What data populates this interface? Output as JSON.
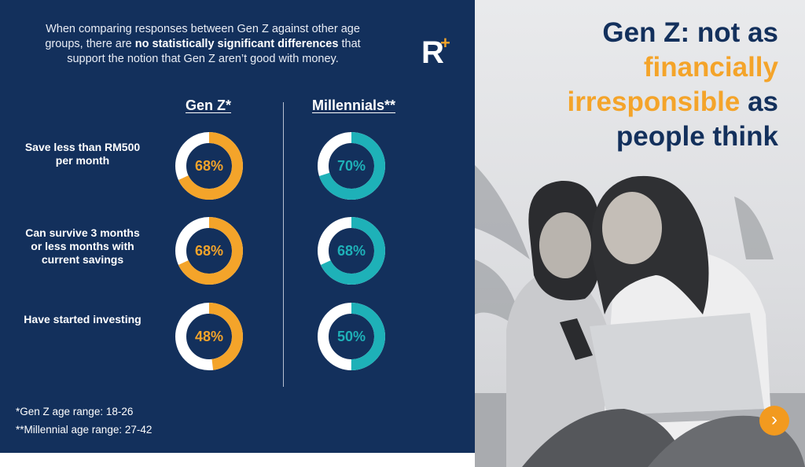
{
  "intro": {
    "part1": "When comparing responses between Gen Z against other age groups,  there are ",
    "bold": "no statistically significant differences",
    "part2": " that support the notion that Gen Z aren’t good with money."
  },
  "logo": {
    "text": "R",
    "plus": "+"
  },
  "columns": {
    "genz": "Gen Z*",
    "millennials": "Millennials**"
  },
  "rows": [
    {
      "label": "Save less than RM500 per month",
      "genz": "68%",
      "millennials": "70%",
      "genz_value": 68,
      "millennials_value": 70
    },
    {
      "label": "Can survive 3 months or less months with current savings",
      "genz": "68%",
      "millennials": "68%",
      "genz_value": 68,
      "millennials_value": 68
    },
    {
      "label": "Have started investing",
      "genz": "48%",
      "millennials": "50%",
      "genz_value": 48,
      "millennials_value": 50
    }
  ],
  "footnotes": {
    "genz": "*Gen Z age range: 18-26",
    "millennials": "**Millennial age range: 27-42"
  },
  "headline": {
    "line1": "Gen Z: not as",
    "line2": "financially",
    "line3a": "irresponsible",
    "line3b": " as",
    "line4": "people think"
  },
  "next_button": {
    "icon": "chevron-right-icon",
    "glyph": "›"
  },
  "colors": {
    "navy": "#13305c",
    "genz_ring": "#f4a42a",
    "millennial_ring": "#1eb1b8",
    "ring_track": "#ffffff",
    "accent_orange": "#f29a1f"
  }
}
